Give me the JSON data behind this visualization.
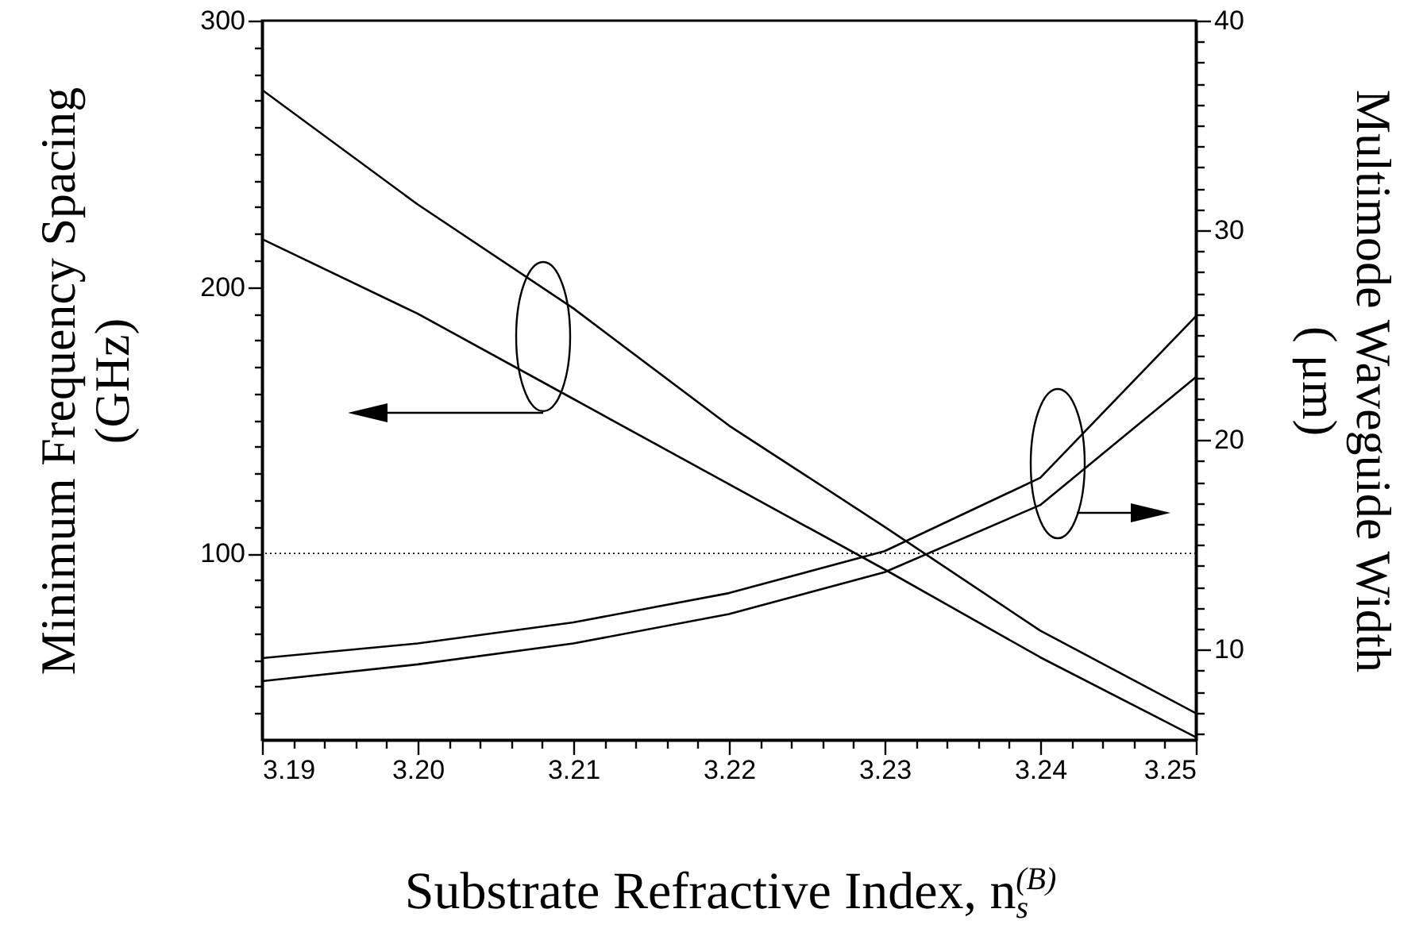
{
  "chart_data": {
    "type": "line",
    "xlabel": "Substrate Refractive Index, n$_{s}$$^{(B)}$",
    "ylabel": "Minimum Frequency Spacing\n(GHz)",
    "y2label": "Multimode Waveguide Width\n( μm)",
    "x": [
      3.19,
      3.2,
      3.21,
      3.22,
      3.23,
      3.24,
      3.25
    ],
    "series": [
      {
        "color": "#000000",
        "values": [
          274,
          231,
          192,
          148,
          110,
          71,
          40
        ]
      },
      {
        "color": "#000000",
        "values": [
          218,
          190,
          158,
          126,
          94,
          61,
          31
        ]
      },
      {
        "color": "#000000",
        "axis": "y2",
        "values": [
          9.6,
          10.3,
          11.3,
          12.7,
          14.7,
          18.2,
          25.9
        ]
      },
      {
        "color": "#000000",
        "axis": "y2",
        "values": [
          8.5,
          9.3,
          10.3,
          11.7,
          13.7,
          16.9,
          23.0
        ]
      }
    ],
    "xlim": [
      3.19,
      3.25
    ],
    "xticks": [
      3.19,
      {
        "value": 3.192,
        "label": null
      },
      {
        "value": 3.194,
        "label": null
      },
      {
        "value": 3.196,
        "label": null
      },
      {
        "value": 3.198,
        "label": null
      },
      {
        "value": 3.2,
        "label": "3.20"
      },
      {
        "value": 3.202,
        "label": null
      },
      {
        "value": 3.204,
        "label": null
      },
      {
        "value": 3.206,
        "label": null
      },
      {
        "value": 3.208,
        "label": null
      },
      3.21,
      {
        "value": 3.212,
        "label": null
      },
      {
        "value": 3.214,
        "label": null
      },
      {
        "value": 3.216,
        "label": null
      },
      {
        "value": 3.218,
        "label": null
      },
      3.22,
      {
        "value": 3.222,
        "label": null
      },
      {
        "value": 3.224,
        "label": null
      },
      {
        "value": 3.226,
        "label": null
      },
      {
        "value": 3.228,
        "label": null
      },
      3.23,
      {
        "value": 3.232,
        "label": null
      },
      {
        "value": 3.234,
        "label": null
      },
      {
        "value": 3.236,
        "label": null
      },
      {
        "value": 3.238,
        "label": null
      },
      3.24,
      {
        "value": 3.242,
        "label": null
      },
      {
        "value": 3.244,
        "label": null
      },
      {
        "value": 3.246,
        "label": null
      },
      {
        "value": 3.248,
        "label": null
      },
      3.25
    ],
    "ylim": [
      30,
      300
    ],
    "yticks": [
      {
        "value": 40,
        "label": null
      },
      {
        "value": 50,
        "label": null
      },
      {
        "value": 60,
        "label": null
      },
      {
        "value": 70,
        "label": null
      },
      {
        "value": 80,
        "label": null
      },
      {
        "value": 90,
        "label": null
      },
      100,
      {
        "value": 110,
        "label": null
      },
      {
        "value": 120,
        "label": null
      },
      {
        "value": 130,
        "label": null
      },
      {
        "value": 140,
        "label": null
      },
      {
        "value": 150,
        "label": null
      },
      {
        "value": 160,
        "label": null
      },
      {
        "value": 170,
        "label": null
      },
      {
        "value": 180,
        "label": null
      },
      {
        "value": 190,
        "label": null
      },
      200,
      {
        "value": 210,
        "label": null
      },
      {
        "value": 220,
        "label": null
      },
      {
        "value": 230,
        "label": null
      },
      {
        "value": 240,
        "label": null
      },
      {
        "value": 250,
        "label": null
      },
      {
        "value": 260,
        "label": null
      },
      {
        "value": 270,
        "label": null
      },
      {
        "value": 280,
        "label": null
      },
      {
        "value": 290,
        "label": null
      },
      300
    ],
    "y2lim": [
      5.7,
      40
    ],
    "y2ticks": [
      {
        "value": 6,
        "label": null
      },
      {
        "value": 7,
        "label": null
      },
      {
        "value": 8,
        "label": null
      },
      {
        "value": 9,
        "label": null
      },
      10,
      {
        "value": 11,
        "label": null
      },
      {
        "value": 12,
        "label": null
      },
      {
        "value": 13,
        "label": null
      },
      {
        "value": 14,
        "label": null
      },
      {
        "value": 15,
        "label": null
      },
      {
        "value": 16,
        "label": null
      },
      {
        "value": 17,
        "label": null
      },
      {
        "value": 18,
        "label": null
      },
      {
        "value": 19,
        "label": null
      },
      20,
      {
        "value": 21,
        "label": null
      },
      {
        "value": 22,
        "label": null
      },
      {
        "value": 23,
        "label": null
      },
      {
        "value": 24,
        "label": null
      },
      {
        "value": 25,
        "label": null
      },
      {
        "value": 26,
        "label": null
      },
      {
        "value": 27,
        "label": null
      },
      {
        "value": 28,
        "label": null
      },
      {
        "value": 29,
        "label": null
      },
      30,
      {
        "value": 31,
        "label": null
      },
      {
        "value": 32,
        "label": null
      },
      {
        "value": 33,
        "label": null
      },
      {
        "value": 34,
        "label": null
      },
      {
        "value": 35,
        "label": null
      },
      {
        "value": 36,
        "label": null
      },
      {
        "value": 37,
        "label": null
      },
      {
        "value": 38,
        "label": null
      },
      {
        "value": 39,
        "label": null
      },
      40
    ],
    "ref_lines": [
      {
        "axis": "y",
        "value": 100,
        "line_style": "dotted"
      }
    ],
    "grid": false,
    "marker": "none",
    "line_style": "solid"
  }
}
